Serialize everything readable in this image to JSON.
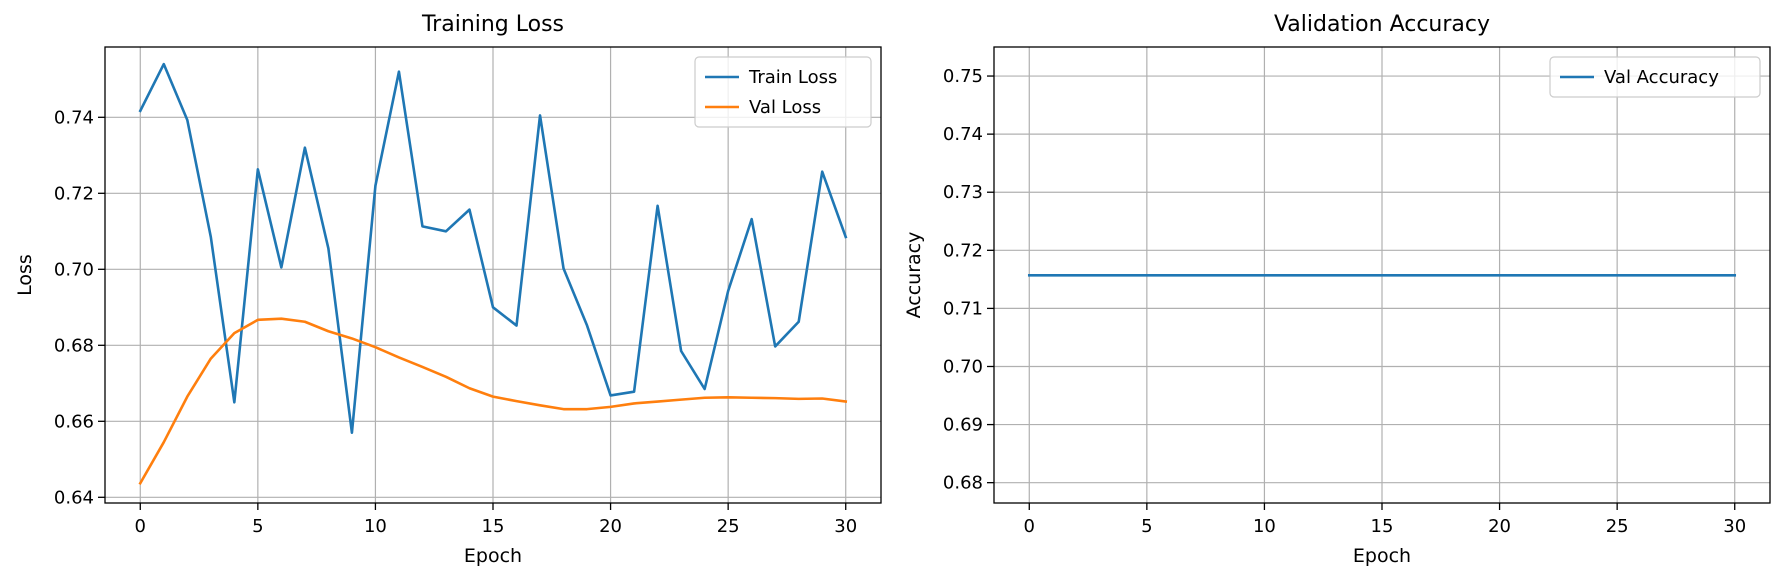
{
  "chart_data": [
    {
      "type": "line",
      "title": "Training Loss",
      "xlabel": "Epoch",
      "ylabel": "Loss",
      "xlim": [
        -1.5,
        31.5
      ],
      "ylim": [
        0.6385,
        0.7585
      ],
      "xticks": [
        0,
        5,
        10,
        15,
        20,
        25,
        30
      ],
      "yticks": [
        0.64,
        0.66,
        0.68,
        0.7,
        0.72,
        0.74
      ],
      "ytick_labels": [
        "0.64",
        "0.66",
        "0.68",
        "0.70",
        "0.72",
        "0.74"
      ],
      "grid": true,
      "legend": "top-right",
      "colors": [
        "#1f77b4",
        "#ff7f0e"
      ],
      "x": [
        0,
        1,
        2,
        3,
        4,
        5,
        6,
        7,
        8,
        9,
        10,
        11,
        12,
        13,
        14,
        15,
        16,
        17,
        18,
        19,
        20,
        21,
        22,
        23,
        24,
        25,
        26,
        27,
        28,
        29,
        30
      ],
      "series": [
        {
          "name": "Train Loss",
          "values": [
            0.7417,
            0.754,
            0.7393,
            0.7085,
            0.665,
            0.7263,
            0.7005,
            0.732,
            0.7055,
            0.657,
            0.722,
            0.752,
            0.7113,
            0.71,
            0.7157,
            0.69,
            0.6852,
            0.7405,
            0.7002,
            0.6852,
            0.6668,
            0.6678,
            0.7167,
            0.6785,
            0.6685,
            0.6943,
            0.7132,
            0.6797,
            0.6862,
            0.7257,
            0.7085
          ]
        },
        {
          "name": "Val Loss",
          "values": [
            0.6437,
            0.6545,
            0.6665,
            0.6765,
            0.6832,
            0.6867,
            0.687,
            0.6862,
            0.6837,
            0.6818,
            0.6795,
            0.6768,
            0.6743,
            0.6717,
            0.6687,
            0.6665,
            0.6653,
            0.6642,
            0.6632,
            0.6632,
            0.6638,
            0.6647,
            0.6652,
            0.6657,
            0.6662,
            0.6663,
            0.6662,
            0.6661,
            0.6659,
            0.666,
            0.6652
          ]
        }
      ]
    },
    {
      "type": "line",
      "title": "Validation Accuracy",
      "xlabel": "Epoch",
      "ylabel": "Accuracy",
      "xlim": [
        -1.5,
        31.5
      ],
      "ylim": [
        0.6765,
        0.755
      ],
      "xticks": [
        0,
        5,
        10,
        15,
        20,
        25,
        30
      ],
      "yticks": [
        0.68,
        0.69,
        0.7,
        0.71,
        0.72,
        0.73,
        0.74,
        0.75
      ],
      "ytick_labels": [
        "0.68",
        "0.69",
        "0.70",
        "0.71",
        "0.72",
        "0.73",
        "0.74",
        "0.75"
      ],
      "grid": true,
      "legend": "top-right",
      "colors": [
        "#1f77b4"
      ],
      "x": [
        0,
        1,
        2,
        3,
        4,
        5,
        6,
        7,
        8,
        9,
        10,
        11,
        12,
        13,
        14,
        15,
        16,
        17,
        18,
        19,
        20,
        21,
        22,
        23,
        24,
        25,
        26,
        27,
        28,
        29,
        30
      ],
      "series": [
        {
          "name": "Val Accuracy",
          "values": [
            0.7157,
            0.7157,
            0.7157,
            0.7157,
            0.7157,
            0.7157,
            0.7157,
            0.7157,
            0.7157,
            0.7157,
            0.7157,
            0.7157,
            0.7157,
            0.7157,
            0.7157,
            0.7157,
            0.7157,
            0.7157,
            0.7157,
            0.7157,
            0.7157,
            0.7157,
            0.7157,
            0.7157,
            0.7157,
            0.7157,
            0.7157,
            0.7157,
            0.7157,
            0.7157,
            0.7157
          ]
        }
      ]
    }
  ]
}
